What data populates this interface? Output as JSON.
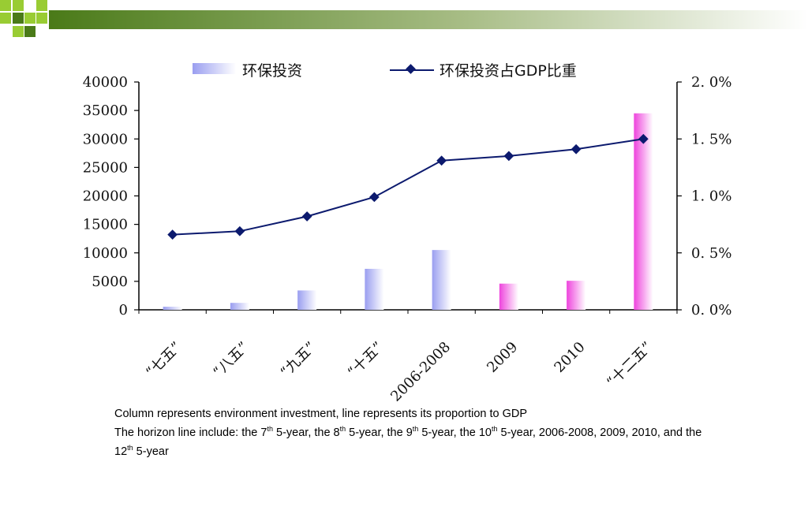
{
  "chart_data": {
    "type": "bar+line",
    "categories": [
      "“七五”",
      "“八五”",
      "“九五”",
      "“十五”",
      "2006-2008",
      "2009",
      "2010",
      "“十二五”"
    ],
    "series": [
      {
        "name": "环保投资",
        "type": "bar",
        "axis": "left",
        "values": [
          540,
          1220,
          3400,
          7200,
          10500,
          4600,
          5100,
          34500
        ],
        "colors": [
          "#9a9ef0",
          "#9a9ef0",
          "#9a9ef0",
          "#9a9ef0",
          "#9a9ef0",
          "#ee44dd",
          "#ee44dd",
          "#ee44dd"
        ]
      },
      {
        "name": "环保投资占GDP比重",
        "type": "line",
        "axis": "right",
        "values": [
          0.66,
          0.69,
          0.82,
          0.99,
          1.31,
          1.35,
          1.41,
          1.5
        ],
        "color": "#0c1a6e"
      }
    ],
    "y_left": {
      "ylim": [
        0,
        40000
      ],
      "ticks": [
        "0",
        "5000",
        "10000",
        "15000",
        "20000",
        "25000",
        "30000",
        "35000",
        "40000"
      ]
    },
    "y_right": {
      "ylim": [
        0,
        2.0
      ],
      "ticks": [
        "0. 0%",
        "0. 5%",
        "1. 0%",
        "1. 5%",
        "2. 0%"
      ]
    },
    "legend": {
      "placement": "top",
      "bar_label": "环保投资",
      "line_label": "环保投资占GDP比重"
    },
    "grid": false
  },
  "caption": {
    "line1": "Column represents environment investment, line represents its proportion to GDP",
    "line2_parts": [
      "The horizon line include: the 7",
      "th",
      " 5-year, the 8",
      "th",
      " 5-year, the 9",
      "th",
      " 5-year, the 10",
      "th",
      " 5-year, 2006-2008, 2009, 2010, and the 12",
      "th",
      " 5-year"
    ]
  },
  "theme": {
    "banner_dark": "#4a7a18",
    "banner_light": "#99cc33"
  }
}
